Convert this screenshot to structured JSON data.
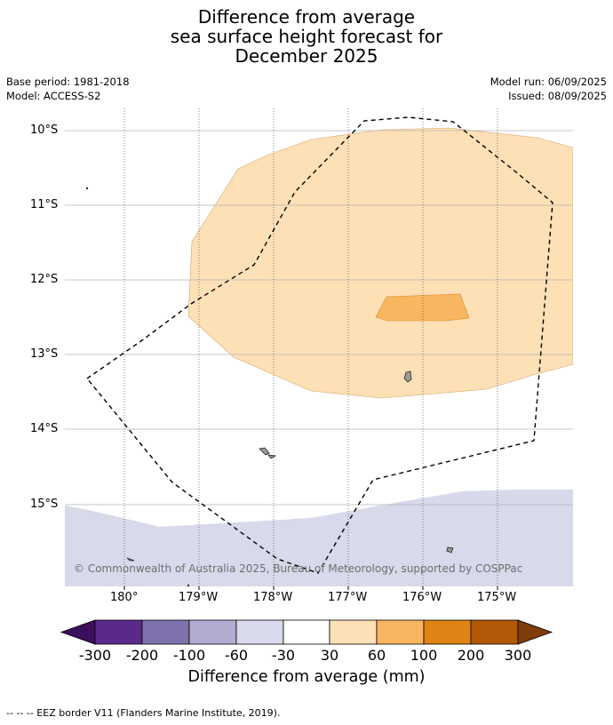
{
  "title": {
    "line1": "Difference from average",
    "line2": "sea surface height forecast for",
    "line3": "December 2025"
  },
  "meta": {
    "base_period": "Base period: 1981-2018",
    "model": "Model: ACCESS-S2",
    "model_run": "Model run: 06/09/2025",
    "issued": "Issued: 08/09/2025"
  },
  "map": {
    "lat_labels": [
      "10°S",
      "11°S",
      "12°S",
      "13°S",
      "14°S",
      "15°S"
    ],
    "lon_labels": [
      "180°",
      "179°W",
      "178°W",
      "177°W",
      "176°W",
      "175°W"
    ],
    "copyright": "© Commonwealth of Australia 2025, Bureau of Meteorology, supported by COSPPac",
    "colors": {
      "anomaly_30_60": "#fde0b6",
      "anomaly_60_100": "#f8b660",
      "anomaly_neg60_neg30": "#d8d9ea"
    }
  },
  "colorbar": {
    "ticks": [
      "-300",
      "-200",
      "-100",
      "-60",
      "-30",
      "30",
      "60",
      "100",
      "200",
      "300"
    ],
    "colors": [
      "#3b0f5c",
      "#5a2a8a",
      "#8072ad",
      "#b2abd2",
      "#d8d9ea",
      "#ffffff",
      "#fde0b6",
      "#f8b660",
      "#e08214",
      "#b35806",
      "#7f3b08"
    ],
    "label": "Difference from average (mm)"
  },
  "footer": {
    "legend": "--  --  -- EEZ border V11 (Flanders Marine Institute, 2019)."
  }
}
